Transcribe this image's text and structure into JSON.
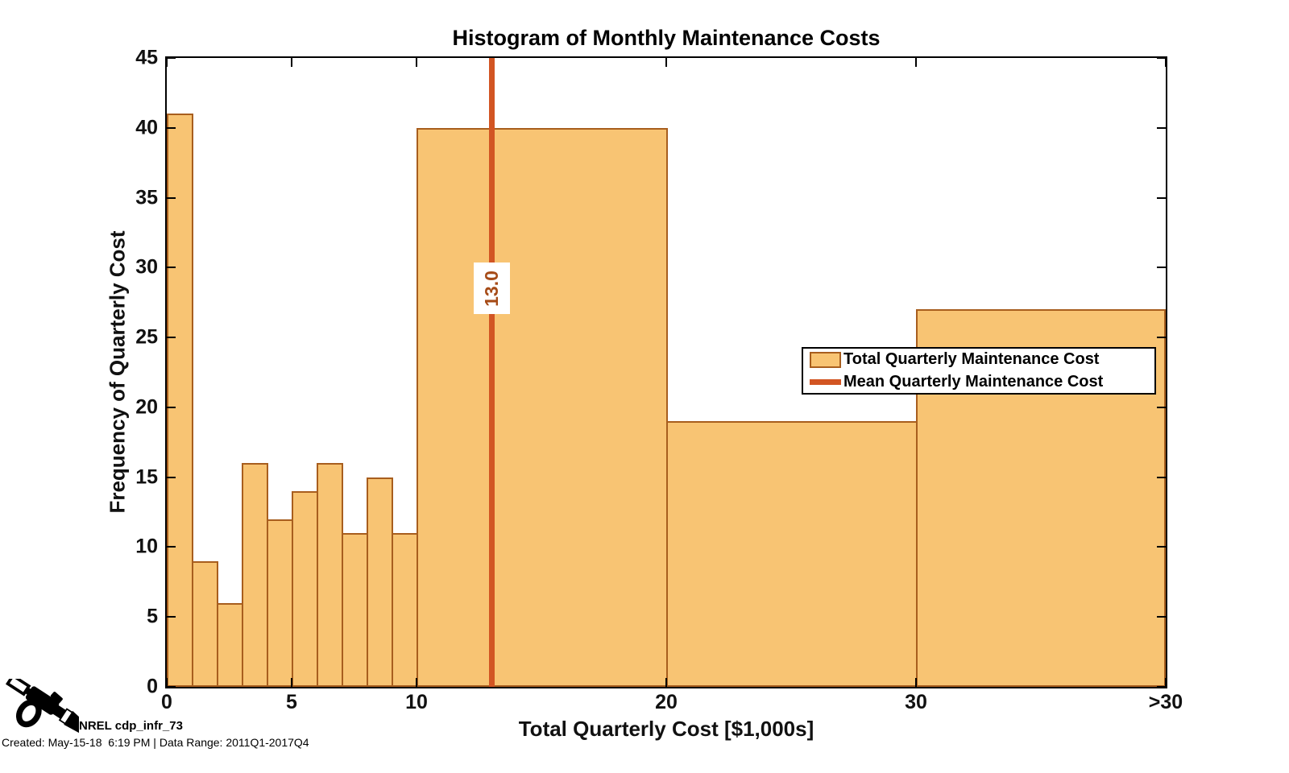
{
  "title": "Histogram of Monthly Maintenance Costs",
  "axes": {
    "xlabel": "Total Quarterly Cost [$1,000s]",
    "ylabel": "Frequency of Quarterly Cost",
    "xlim": [
      0,
      40
    ],
    "ylim": [
      0,
      45
    ],
    "xticks": [
      {
        "value": 0,
        "label": "0"
      },
      {
        "value": 5,
        "label": "5"
      },
      {
        "value": 10,
        "label": "10"
      },
      {
        "value": 20,
        "label": "20"
      },
      {
        "value": 30,
        "label": "30"
      },
      {
        "value": 40,
        "label": ">30"
      }
    ],
    "yticks": [
      0,
      5,
      10,
      15,
      20,
      25,
      30,
      35,
      40,
      45
    ]
  },
  "chart_data": {
    "type": "bar",
    "subtype": "histogram",
    "title": "Histogram of Monthly Maintenance Costs",
    "xlabel": "Total Quarterly Cost [$1,000s]",
    "ylabel": "Frequency of Quarterly Cost",
    "xlim": [
      0,
      40
    ],
    "ylim": [
      0,
      45
    ],
    "grid": false,
    "bins": [
      {
        "x0": 0,
        "x1": 1,
        "count": 41
      },
      {
        "x0": 1,
        "x1": 2,
        "count": 9
      },
      {
        "x0": 2,
        "x1": 3,
        "count": 6
      },
      {
        "x0": 3,
        "x1": 4,
        "count": 16
      },
      {
        "x0": 4,
        "x1": 5,
        "count": 12
      },
      {
        "x0": 5,
        "x1": 6,
        "count": 14
      },
      {
        "x0": 6,
        "x1": 7,
        "count": 16
      },
      {
        "x0": 7,
        "x1": 8,
        "count": 11
      },
      {
        "x0": 8,
        "x1": 9,
        "count": 15
      },
      {
        "x0": 9,
        "x1": 10,
        "count": 11
      },
      {
        "x0": 10,
        "x1": 20,
        "count": 40
      },
      {
        "x0": 20,
        "x1": 30,
        "count": 19
      },
      {
        "x0": 30,
        "x1": 40,
        "count": 27
      }
    ],
    "mean_line": {
      "x": 13.0,
      "label": "13.0"
    },
    "legend_position": "middle-right"
  },
  "legend": {
    "items": [
      {
        "swatch": "patch",
        "label": "Total Quarterly Maintenance Cost"
      },
      {
        "swatch": "line",
        "label": "Mean Quarterly Maintenance Cost"
      }
    ]
  },
  "footer": {
    "brand": "NREL cdp_infr_73",
    "created": "Created: May-15-18  6:19 PM | Data Range: 2011Q1-2017Q4",
    "icon": "fuel-nozzle-icon"
  },
  "colors": {
    "bar_fill": "#F8C473",
    "bar_edge": "#A85E1E",
    "mean_line": "#D25523",
    "mean_label_text": "#A64B17",
    "frame": "#000000",
    "background": "#FFFFFF"
  }
}
